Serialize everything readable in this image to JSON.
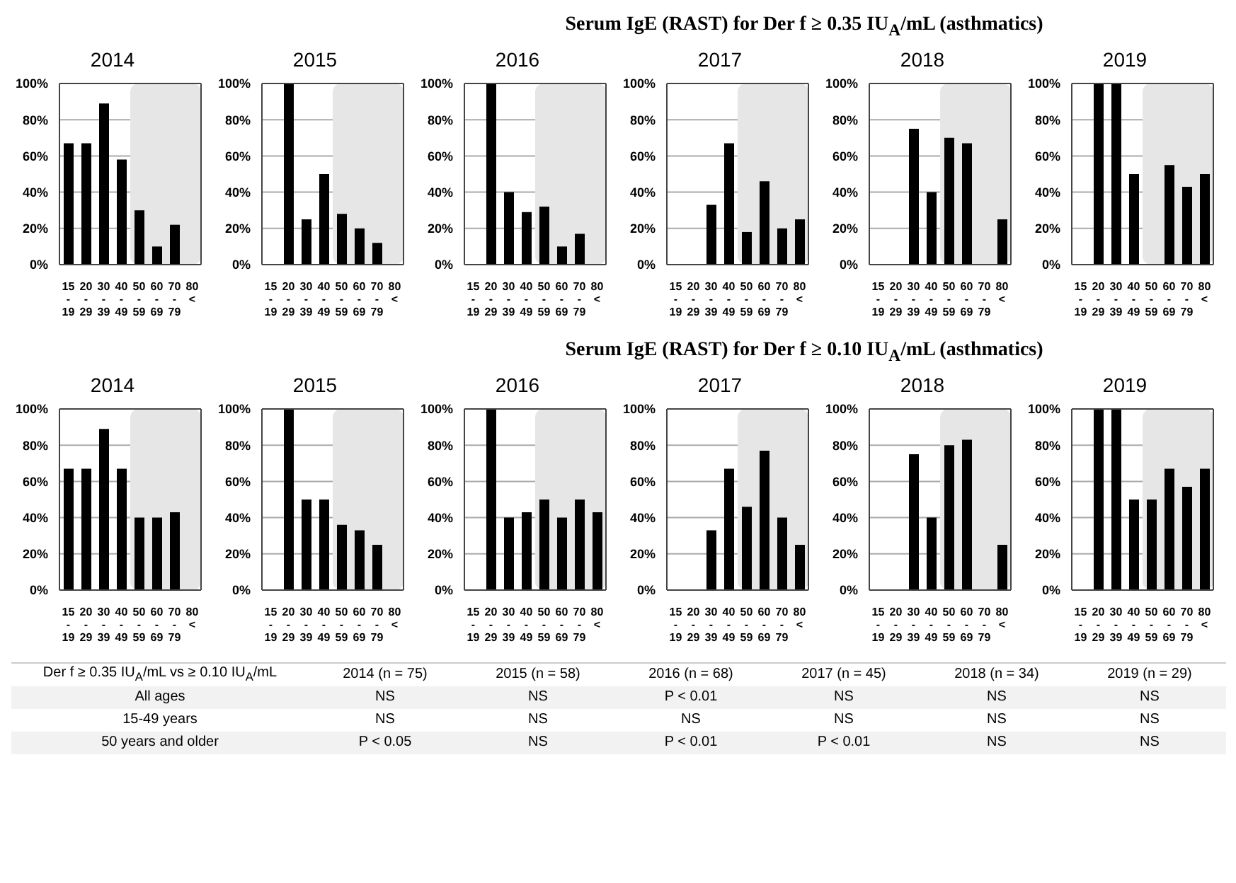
{
  "chart_data": [
    {
      "type": "other",
      "title": "Serum IgE (RAST) for Der f ≥ 0.35 IU$_{A}$/mL (asthmatics)"
    },
    {
      "type": "bar",
      "title": "2014",
      "categories": [
        "15\n-\n19",
        "20\n-\n29",
        "30\n-\n39",
        "40\n-\n49",
        "50\n-\n59",
        "60\n-\n69",
        "70\n-\n79",
        "80\n<"
      ],
      "values": [
        67,
        67,
        89,
        58,
        30,
        10,
        22,
        null
      ],
      "color": "#000000",
      "ylim": [
        0,
        100
      ],
      "yticks": [
        {
          "value": 0,
          "label": "0%"
        },
        {
          "value": 20,
          "label": "20%"
        },
        {
          "value": 40,
          "label": "40%"
        },
        {
          "value": 60,
          "label": "60%"
        },
        {
          "value": 80,
          "label": "80%"
        },
        {
          "value": 100,
          "label": "100%"
        }
      ],
      "grid": "y",
      "bands": [
        {
          "axis": "x",
          "from": "50\n-\n59",
          "to": "80\n<",
          "color": "#e6e6e6"
        }
      ]
    },
    {
      "type": "bar",
      "title": "2015",
      "categories": [
        "15\n-\n19",
        "20\n-\n29",
        "30\n-\n39",
        "40\n-\n49",
        "50\n-\n59",
        "60\n-\n69",
        "70\n-\n79",
        "80\n<"
      ],
      "values": [
        null,
        100,
        25,
        50,
        28,
        20,
        12,
        null
      ],
      "color": "#000000",
      "ylim": [
        0,
        100
      ],
      "yticks": [
        {
          "value": 0,
          "label": "0%"
        },
        {
          "value": 20,
          "label": "20%"
        },
        {
          "value": 40,
          "label": "40%"
        },
        {
          "value": 60,
          "label": "60%"
        },
        {
          "value": 80,
          "label": "80%"
        },
        {
          "value": 100,
          "label": "100%"
        }
      ],
      "grid": "y",
      "bands": [
        {
          "axis": "x",
          "from": "50\n-\n59",
          "to": "80\n<",
          "color": "#e6e6e6"
        }
      ]
    },
    {
      "type": "bar",
      "title": "2016",
      "categories": [
        "15\n-\n19",
        "20\n-\n29",
        "30\n-\n39",
        "40\n-\n49",
        "50\n-\n59",
        "60\n-\n69",
        "70\n-\n79",
        "80\n<"
      ],
      "values": [
        null,
        100,
        40,
        29,
        32,
        10,
        17,
        null
      ],
      "color": "#000000",
      "ylim": [
        0,
        100
      ],
      "yticks": [
        {
          "value": 0,
          "label": "0%"
        },
        {
          "value": 20,
          "label": "20%"
        },
        {
          "value": 40,
          "label": "40%"
        },
        {
          "value": 60,
          "label": "60%"
        },
        {
          "value": 80,
          "label": "80%"
        },
        {
          "value": 100,
          "label": "100%"
        }
      ],
      "grid": "y",
      "bands": [
        {
          "axis": "x",
          "from": "50\n-\n59",
          "to": "80\n<",
          "color": "#e6e6e6"
        }
      ]
    },
    {
      "type": "bar",
      "title": "2017",
      "categories": [
        "15\n-\n19",
        "20\n-\n29",
        "30\n-\n39",
        "40\n-\n49",
        "50\n-\n59",
        "60\n-\n69",
        "70\n-\n79",
        "80\n<"
      ],
      "values": [
        null,
        null,
        33,
        67,
        18,
        46,
        20,
        25
      ],
      "color": "#000000",
      "ylim": [
        0,
        100
      ],
      "yticks": [
        {
          "value": 0,
          "label": "0%"
        },
        {
          "value": 20,
          "label": "20%"
        },
        {
          "value": 40,
          "label": "40%"
        },
        {
          "value": 60,
          "label": "60%"
        },
        {
          "value": 80,
          "label": "80%"
        },
        {
          "value": 100,
          "label": "100%"
        }
      ],
      "grid": "y",
      "bands": [
        {
          "axis": "x",
          "from": "50\n-\n59",
          "to": "80\n<",
          "color": "#e6e6e6"
        }
      ]
    },
    {
      "type": "bar",
      "title": "2018",
      "categories": [
        "15\n-\n19",
        "20\n-\n29",
        "30\n-\n39",
        "40\n-\n49",
        "50\n-\n59",
        "60\n-\n69",
        "70\n-\n79",
        "80\n<"
      ],
      "values": [
        null,
        null,
        75,
        40,
        70,
        67,
        null,
        25
      ],
      "color": "#000000",
      "ylim": [
        0,
        100
      ],
      "yticks": [
        {
          "value": 0,
          "label": "0%"
        },
        {
          "value": 20,
          "label": "20%"
        },
        {
          "value": 40,
          "label": "40%"
        },
        {
          "value": 60,
          "label": "60%"
        },
        {
          "value": 80,
          "label": "80%"
        },
        {
          "value": 100,
          "label": "100%"
        }
      ],
      "grid": "y",
      "bands": [
        {
          "axis": "x",
          "from": "50\n-\n59",
          "to": "80\n<",
          "color": "#e6e6e6"
        }
      ]
    },
    {
      "type": "bar",
      "title": "2019",
      "categories": [
        "15\n-\n19",
        "20\n-\n29",
        "30\n-\n39",
        "40\n-\n49",
        "50\n-\n59",
        "60\n-\n69",
        "70\n-\n79",
        "80\n<"
      ],
      "values": [
        null,
        100,
        100,
        50,
        null,
        55,
        43,
        50
      ],
      "color": "#000000",
      "ylim": [
        0,
        100
      ],
      "yticks": [
        {
          "value": 0,
          "label": "0%"
        },
        {
          "value": 20,
          "label": "20%"
        },
        {
          "value": 40,
          "label": "40%"
        },
        {
          "value": 60,
          "label": "60%"
        },
        {
          "value": 80,
          "label": "80%"
        },
        {
          "value": 100,
          "label": "100%"
        }
      ],
      "grid": "y",
      "bands": [
        {
          "axis": "x",
          "from": "50\n-\n59",
          "to": "80\n<",
          "color": "#e6e6e6"
        }
      ]
    },
    {
      "type": "other",
      "title": "Serum IgE (RAST) for Der f ≥ 0.10 IU$_{A}$/mL (asthmatics)"
    },
    {
      "type": "bar",
      "title": "2014",
      "categories": [
        "15\n-\n19",
        "20\n-\n29",
        "30\n-\n39",
        "40\n-\n49",
        "50\n-\n59",
        "60\n-\n69",
        "70\n-\n79",
        "80\n<"
      ],
      "values": [
        67,
        67,
        89,
        67,
        40,
        40,
        43,
        null
      ],
      "color": "#000000",
      "ylim": [
        0,
        100
      ],
      "yticks": [
        {
          "value": 0,
          "label": "0%"
        },
        {
          "value": 20,
          "label": "20%"
        },
        {
          "value": 40,
          "label": "40%"
        },
        {
          "value": 60,
          "label": "60%"
        },
        {
          "value": 80,
          "label": "80%"
        },
        {
          "value": 100,
          "label": "100%"
        }
      ],
      "grid": "y",
      "bands": [
        {
          "axis": "x",
          "from": "50\n-\n59",
          "to": "80\n<",
          "color": "#e6e6e6"
        }
      ]
    },
    {
      "type": "bar",
      "title": "2015",
      "categories": [
        "15\n-\n19",
        "20\n-\n29",
        "30\n-\n39",
        "40\n-\n49",
        "50\n-\n59",
        "60\n-\n69",
        "70\n-\n79",
        "80\n<"
      ],
      "values": [
        null,
        100,
        50,
        50,
        36,
        33,
        25,
        null
      ],
      "color": "#000000",
      "ylim": [
        0,
        100
      ],
      "yticks": [
        {
          "value": 0,
          "label": "0%"
        },
        {
          "value": 20,
          "label": "20%"
        },
        {
          "value": 40,
          "label": "40%"
        },
        {
          "value": 60,
          "label": "60%"
        },
        {
          "value": 80,
          "label": "80%"
        },
        {
          "value": 100,
          "label": "100%"
        }
      ],
      "grid": "y",
      "bands": [
        {
          "axis": "x",
          "from": "50\n-\n59",
          "to": "80\n<",
          "color": "#e6e6e6"
        }
      ]
    },
    {
      "type": "bar",
      "title": "2016",
      "categories": [
        "15\n-\n19",
        "20\n-\n29",
        "30\n-\n39",
        "40\n-\n49",
        "50\n-\n59",
        "60\n-\n69",
        "70\n-\n79",
        "80\n<"
      ],
      "values": [
        null,
        100,
        40,
        43,
        50,
        40,
        50,
        43
      ],
      "color": "#000000",
      "ylim": [
        0,
        100
      ],
      "yticks": [
        {
          "value": 0,
          "label": "0%"
        },
        {
          "value": 20,
          "label": "20%"
        },
        {
          "value": 40,
          "label": "40%"
        },
        {
          "value": 60,
          "label": "60%"
        },
        {
          "value": 80,
          "label": "80%"
        },
        {
          "value": 100,
          "label": "100%"
        }
      ],
      "grid": "y",
      "bands": [
        {
          "axis": "x",
          "from": "50\n-\n59",
          "to": "80\n<",
          "color": "#e6e6e6"
        }
      ]
    },
    {
      "type": "bar",
      "title": "2017",
      "categories": [
        "15\n-\n19",
        "20\n-\n29",
        "30\n-\n39",
        "40\n-\n49",
        "50\n-\n59",
        "60\n-\n69",
        "70\n-\n79",
        "80\n<"
      ],
      "values": [
        null,
        null,
        33,
        67,
        46,
        77,
        40,
        25
      ],
      "color": "#000000",
      "ylim": [
        0,
        100
      ],
      "yticks": [
        {
          "value": 0,
          "label": "0%"
        },
        {
          "value": 20,
          "label": "20%"
        },
        {
          "value": 40,
          "label": "40%"
        },
        {
          "value": 60,
          "label": "60%"
        },
        {
          "value": 80,
          "label": "80%"
        },
        {
          "value": 100,
          "label": "100%"
        }
      ],
      "grid": "y",
      "bands": [
        {
          "axis": "x",
          "from": "50\n-\n59",
          "to": "80\n<",
          "color": "#e6e6e6"
        }
      ]
    },
    {
      "type": "bar",
      "title": "2018",
      "categories": [
        "15\n-\n19",
        "20\n-\n29",
        "30\n-\n39",
        "40\n-\n49",
        "50\n-\n59",
        "60\n-\n69",
        "70\n-\n79",
        "80\n<"
      ],
      "values": [
        null,
        null,
        75,
        40,
        80,
        83,
        null,
        25
      ],
      "color": "#000000",
      "ylim": [
        0,
        100
      ],
      "yticks": [
        {
          "value": 0,
          "label": "0%"
        },
        {
          "value": 20,
          "label": "20%"
        },
        {
          "value": 40,
          "label": "40%"
        },
        {
          "value": 60,
          "label": "60%"
        },
        {
          "value": 80,
          "label": "80%"
        },
        {
          "value": 100,
          "label": "100%"
        }
      ],
      "grid": "y",
      "bands": [
        {
          "axis": "x",
          "from": "50\n-\n59",
          "to": "80\n<",
          "color": "#e6e6e6"
        }
      ]
    },
    {
      "type": "bar",
      "title": "2019",
      "categories": [
        "15\n-\n19",
        "20\n-\n29",
        "30\n-\n39",
        "40\n-\n49",
        "50\n-\n59",
        "60\n-\n69",
        "70\n-\n79",
        "80\n<"
      ],
      "values": [
        null,
        100,
        100,
        50,
        50,
        67,
        57,
        67
      ],
      "color": "#000000",
      "ylim": [
        0,
        100
      ],
      "yticks": [
        {
          "value": 0,
          "label": "0%"
        },
        {
          "value": 20,
          "label": "20%"
        },
        {
          "value": 40,
          "label": "40%"
        },
        {
          "value": 60,
          "label": "60%"
        },
        {
          "value": 80,
          "label": "80%"
        },
        {
          "value": 100,
          "label": "100%"
        }
      ],
      "grid": "y",
      "bands": [
        {
          "axis": "x",
          "from": "50\n-\n59",
          "to": "80\n<",
          "color": "#e6e6e6"
        }
      ]
    },
    {
      "type": "other",
      "annotations": [
        "Der f ≥ 0.35 IU$_{A}$/mL  vs ≥ 0.10 IU$_{A}$/mL",
        "2014 (n = 75)",
        "2015 (n = 58)",
        "2016 (n = 68)",
        "2017 (n = 45)",
        "2018 (n = 34)",
        "2019 (n = 29)",
        "All ages",
        "NS",
        "NS",
        "P < 0.01",
        "NS",
        "NS",
        "NS",
        "15-49 years",
        "NS",
        "NS",
        "NS",
        "NS",
        "NS",
        "NS",
        "50 years and older",
        "P < 0.05",
        "NS",
        "P < 0.01",
        "P < 0.01",
        "NS",
        "NS"
      ]
    }
  ]
}
